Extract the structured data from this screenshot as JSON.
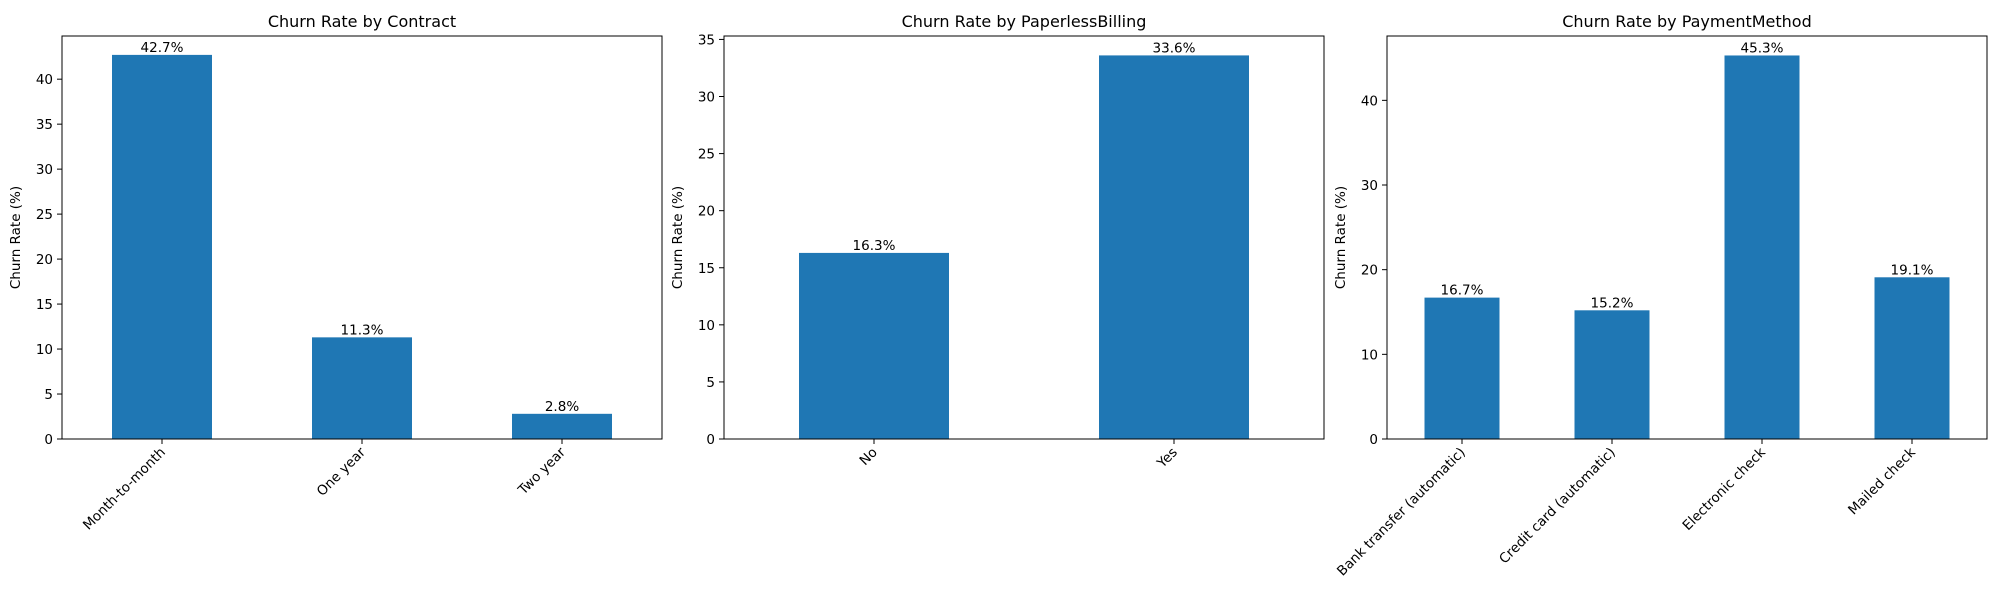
{
  "chart_data": [
    {
      "type": "bar",
      "title": "Churn Rate by Contract",
      "xlabel": "",
      "ylabel": "Churn Rate (%)",
      "categories": [
        "Month-to-month",
        "One year",
        "Two year"
      ],
      "values": [
        42.7,
        11.3,
        2.8
      ],
      "value_labels": [
        "42.7%",
        "11.3%",
        "2.8%"
      ],
      "ylim": [
        0,
        44.8
      ],
      "yticks": [
        0,
        5,
        10,
        15,
        20,
        25,
        30,
        35,
        40
      ],
      "grid": false,
      "legend": "none",
      "color": "#1f77b4"
    },
    {
      "type": "bar",
      "title": "Churn Rate by PaperlessBilling",
      "xlabel": "",
      "ylabel": "Churn Rate (%)",
      "categories": [
        "No",
        "Yes"
      ],
      "values": [
        16.3,
        33.6
      ],
      "value_labels": [
        "16.3%",
        "33.6%"
      ],
      "ylim": [
        0,
        35.3
      ],
      "yticks": [
        0,
        5,
        10,
        15,
        20,
        25,
        30,
        35
      ],
      "grid": false,
      "legend": "none",
      "color": "#1f77b4"
    },
    {
      "type": "bar",
      "title": "Churn Rate by PaymentMethod",
      "xlabel": "",
      "ylabel": "Churn Rate (%)",
      "categories": [
        "Bank transfer (automatic)",
        "Credit card (automatic)",
        "Electronic check",
        "Mailed check"
      ],
      "values": [
        16.7,
        15.2,
        45.3,
        19.1
      ],
      "value_labels": [
        "16.7%",
        "15.2%",
        "45.3%",
        "19.1%"
      ],
      "ylim": [
        0,
        47.6
      ],
      "yticks": [
        0,
        10,
        20,
        30,
        40
      ],
      "grid": false,
      "legend": "none",
      "color": "#1f77b4"
    }
  ]
}
